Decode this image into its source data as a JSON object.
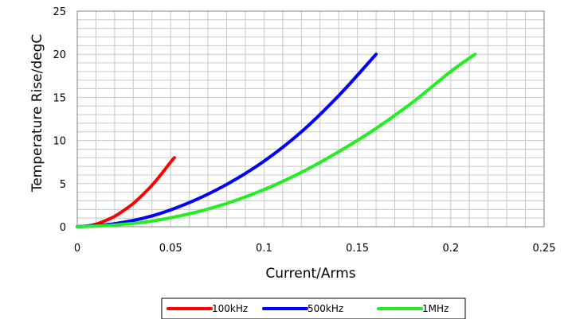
{
  "chart_data": {
    "type": "line",
    "title": "",
    "xlabel": "Current/Arms",
    "ylabel": "Temperature Rise/degC",
    "xlim": [
      0,
      0.25
    ],
    "ylim": [
      0,
      25
    ],
    "xticks": [
      "0",
      "0.05",
      "0.1",
      "0.15",
      "0.2",
      "0.25"
    ],
    "yticks": [
      "0",
      "5",
      "10",
      "15",
      "20",
      "25"
    ],
    "grid": true,
    "legend_position": "bottom",
    "series": [
      {
        "name": "100kHz",
        "color": "#ff0000",
        "x": [
          0,
          0.005,
          0.01,
          0.015,
          0.02,
          0.025,
          0.03,
          0.035,
          0.04,
          0.045,
          0.05,
          0.052
        ],
        "y": [
          0,
          0.08,
          0.3,
          0.7,
          1.2,
          1.9,
          2.7,
          3.7,
          4.8,
          6.1,
          7.5,
          8.0
        ]
      },
      {
        "name": "500kHz",
        "color": "#0000ff",
        "x": [
          0,
          0.02,
          0.04,
          0.06,
          0.08,
          0.1,
          0.12,
          0.14,
          0.16
        ],
        "y": [
          0,
          0.35,
          1.25,
          2.8,
          4.9,
          7.6,
          11.0,
          15.2,
          20.0
        ]
      },
      {
        "name": "1MHz",
        "color": "#22ee22",
        "x": [
          0,
          0.02,
          0.04,
          0.06,
          0.08,
          0.1,
          0.12,
          0.14,
          0.16,
          0.18,
          0.2,
          0.213
        ],
        "y": [
          0,
          0.2,
          0.65,
          1.5,
          2.7,
          4.3,
          6.3,
          8.7,
          11.4,
          14.5,
          18.0,
          20.0
        ]
      }
    ]
  }
}
